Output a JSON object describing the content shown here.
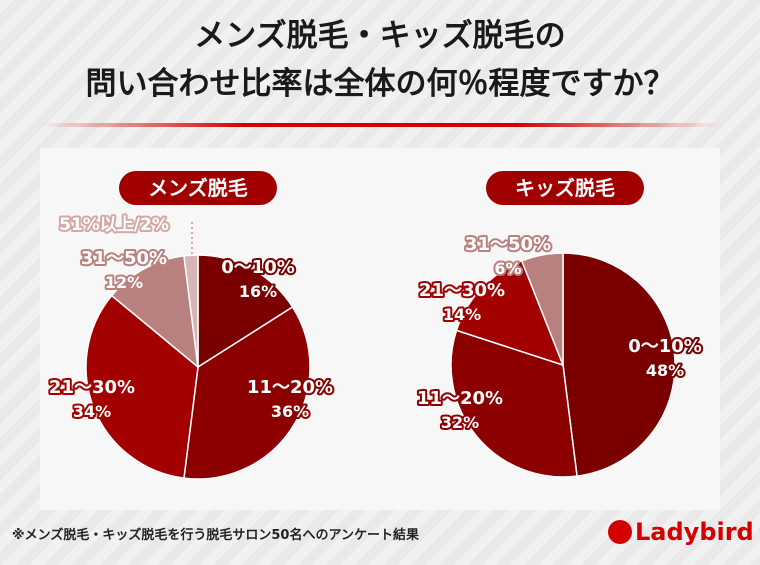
{
  "title": {
    "line1": "メンズ脱毛・キッズ脱毛の",
    "line2": "問い合わせ比率は全体の何％程度ですか？"
  },
  "footnote": "※メンズ脱毛・キッズ脱毛を行う脱毛サロン50名へのアンケート結果",
  "logo": {
    "text": "Ladybird"
  },
  "chart_data": [
    {
      "type": "pie",
      "title": "メンズ脱毛",
      "categories": [
        "0〜10%",
        "11〜20%",
        "21〜30%",
        "31〜50%",
        "51%以上"
      ],
      "values": [
        16,
        36,
        34,
        12,
        2
      ],
      "value_labels": [
        "16%",
        "36%",
        "34%",
        "12%",
        "2%"
      ],
      "outside_label": "51%以上/2%",
      "colors": [
        "#7a0000",
        "#8c0000",
        "#a30000",
        "#b98080",
        "#d8b4b4"
      ],
      "start": "top",
      "direction": "clockwise"
    },
    {
      "type": "pie",
      "title": "キッズ脱毛",
      "categories": [
        "0〜10%",
        "11〜20%",
        "21〜30%",
        "31〜50%"
      ],
      "values": [
        48,
        32,
        14,
        6
      ],
      "value_labels": [
        "48%",
        "32%",
        "14%",
        "6%"
      ],
      "colors": [
        "#7a0000",
        "#8c0000",
        "#a30000",
        "#b98080"
      ],
      "start": "top",
      "direction": "clockwise"
    }
  ]
}
